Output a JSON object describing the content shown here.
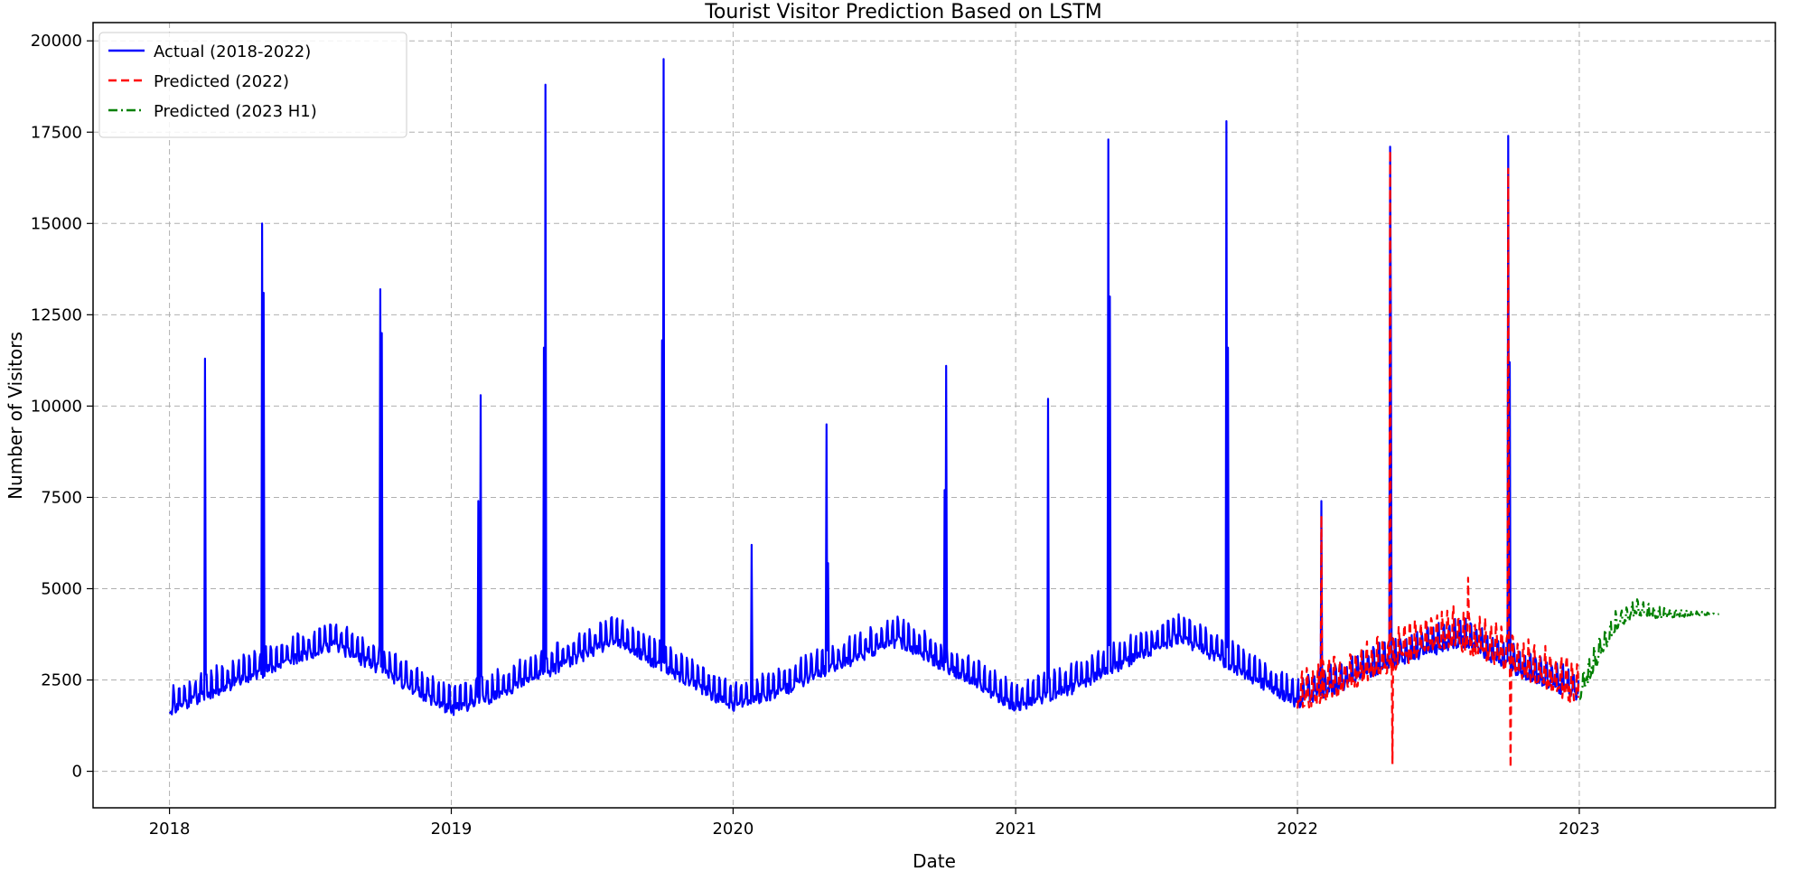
{
  "chart_data": {
    "type": "line",
    "title": "Tourist Visitor Prediction Based on LSTM",
    "xlabel": "Date",
    "ylabel": "Number of Visitors",
    "xlim": [
      "2017-09-24",
      "2023-09-12"
    ],
    "ylim": [
      -1000,
      20500
    ],
    "grid": true,
    "legend_position": "top-left",
    "x_ticks": [
      "2018-01-01",
      "2019-01-01",
      "2020-01-01",
      "2021-01-01",
      "2022-01-01",
      "2023-01-01"
    ],
    "x_tick_labels": [
      "2018",
      "2019",
      "2020",
      "2021",
      "2022",
      "2023"
    ],
    "y_ticks": [
      0,
      2500,
      5000,
      7500,
      10000,
      12500,
      15000,
      17500,
      20000
    ],
    "y_tick_labels": [
      "0",
      "2500",
      "5000",
      "7500",
      "10000",
      "12500",
      "15000",
      "17500",
      "20000"
    ],
    "series": [
      {
        "name": "Actual (2018-2022)",
        "color": "#0000ff",
        "style": "solid",
        "seed": 11,
        "amp_start": 450,
        "amp_end": 450,
        "baseline": [
          [
            "2018-01-01",
            1800
          ],
          [
            "2018-04-01",
            2600
          ],
          [
            "2018-08-01",
            3600
          ],
          [
            "2018-10-01",
            2900
          ],
          [
            "2018-12-31",
            1800
          ],
          [
            "2019-02-15",
            2100
          ],
          [
            "2019-05-01",
            2800
          ],
          [
            "2019-08-01",
            3700
          ],
          [
            "2019-10-01",
            3000
          ],
          [
            "2020-01-01",
            1900
          ],
          [
            "2020-03-01",
            2300
          ],
          [
            "2020-05-01",
            2900
          ],
          [
            "2020-08-01",
            3700
          ],
          [
            "2020-10-01",
            3000
          ],
          [
            "2021-01-01",
            1900
          ],
          [
            "2021-03-15",
            2400
          ],
          [
            "2021-05-01",
            2900
          ],
          [
            "2021-08-01",
            3800
          ],
          [
            "2021-10-01",
            3100
          ],
          [
            "2021-12-31",
            2000
          ],
          [
            "2022-03-01",
            2500
          ],
          [
            "2022-05-01",
            3100
          ],
          [
            "2022-08-01",
            3700
          ],
          [
            "2022-10-01",
            3000
          ],
          [
            "2022-12-31",
            2200
          ]
        ],
        "spikes": [
          [
            "2018-02-16",
            11300
          ],
          [
            "2018-05-01",
            15000
          ],
          [
            "2018-05-03",
            13100
          ],
          [
            "2018-10-01",
            13200
          ],
          [
            "2018-10-03",
            12000
          ],
          [
            "2019-02-05",
            7400
          ],
          [
            "2019-02-08",
            10300
          ],
          [
            "2019-05-01",
            11600
          ],
          [
            "2019-05-03",
            18800
          ],
          [
            "2019-10-01",
            11800
          ],
          [
            "2019-10-03",
            19500
          ],
          [
            "2020-01-25",
            6200
          ],
          [
            "2020-05-01",
            9500
          ],
          [
            "2020-05-03",
            5700
          ],
          [
            "2020-10-01",
            7700
          ],
          [
            "2020-10-03",
            11100
          ],
          [
            "2021-02-12",
            10200
          ],
          [
            "2021-05-01",
            17300
          ],
          [
            "2021-05-03",
            13000
          ],
          [
            "2021-10-01",
            17800
          ],
          [
            "2021-10-03",
            11600
          ],
          [
            "2022-02-01",
            7400
          ],
          [
            "2022-05-01",
            17100
          ],
          [
            "2022-05-02",
            12700
          ],
          [
            "2022-10-01",
            17400
          ],
          [
            "2022-10-03",
            11200
          ]
        ]
      },
      {
        "name": "Predicted (2022)",
        "color": "#ff0000",
        "style": "dashed",
        "seed": 29,
        "amp_start": 600,
        "amp_end": 650,
        "baseline": [
          [
            "2022-01-01",
            2000
          ],
          [
            "2022-03-01",
            2500
          ],
          [
            "2022-05-01",
            3100
          ],
          [
            "2022-07-15",
            3800
          ],
          [
            "2022-09-15",
            3300
          ],
          [
            "2022-12-31",
            2200
          ]
        ],
        "spikes": [
          [
            "2022-02-01",
            7000
          ],
          [
            "2022-05-01",
            17000
          ],
          [
            "2022-05-04",
            200
          ],
          [
            "2022-10-01",
            16500
          ],
          [
            "2022-10-04",
            100
          ],
          [
            "2022-08-10",
            5300
          ]
        ]
      },
      {
        "name": "Predicted (2023 H1)",
        "color": "#008000",
        "style": "dashdot",
        "seed": 53,
        "amp_start": 450,
        "amp_end": 0,
        "baseline": [
          [
            "2023-01-01",
            2200
          ],
          [
            "2023-01-20",
            3000
          ],
          [
            "2023-02-15",
            4000
          ],
          [
            "2023-03-15",
            4400
          ],
          [
            "2023-04-15",
            4300
          ],
          [
            "2023-07-01",
            4300
          ]
        ],
        "spikes": []
      }
    ]
  }
}
